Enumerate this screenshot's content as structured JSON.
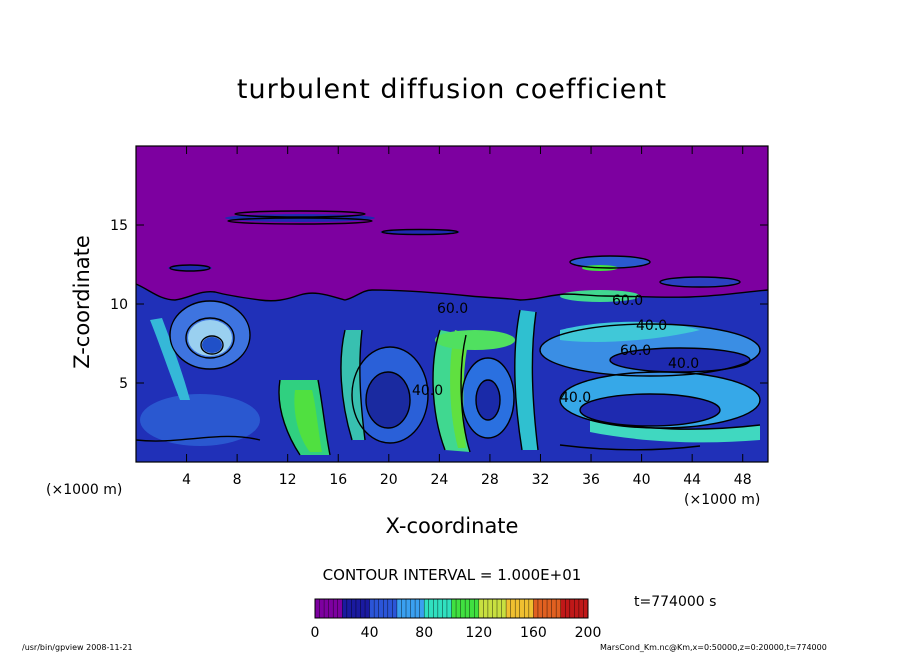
{
  "chart_data": {
    "type": "heatmap",
    "title": "turbulent diffusion coefficient",
    "xlabel": "X-coordinate",
    "ylabel": "Z-coordinate",
    "x_unit": "(×1000 m)",
    "xlim": [
      0,
      50
    ],
    "ylim": [
      0,
      20
    ],
    "x_ticks": [
      4,
      8,
      12,
      16,
      20,
      24,
      28,
      32,
      36,
      40,
      44,
      48
    ],
    "y_ticks": [
      5,
      10,
      15
    ],
    "colorbar": {
      "range": [
        0,
        200
      ],
      "ticks": [
        0,
        40,
        80,
        120,
        160,
        200
      ],
      "colors": [
        "#7d00a0",
        "#1a1aa0",
        "#2b55d8",
        "#3aa0f0",
        "#30e0c0",
        "#40e040",
        "#c8e040",
        "#f0c030",
        "#e06020",
        "#c01818"
      ]
    },
    "contour_interval": "CONTOUR INTERVAL = 1.000E+01",
    "contour_labels": [
      "60.0",
      "60.0",
      "40.0",
      "40.0",
      "60.0",
      "40.0",
      "40.0"
    ],
    "time": "t=774000 s",
    "background_color": "#7d00a0",
    "grid": false
  },
  "footer": {
    "left": "/usr/bin/gpview   2008-11-21",
    "right": "MarsCond_Km.nc@Km,x=0:50000,z=0:20000,t=774000"
  }
}
